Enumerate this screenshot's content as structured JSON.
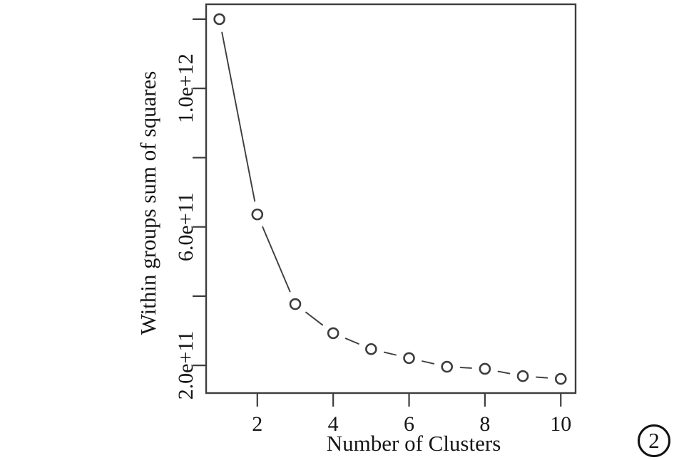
{
  "figure": {
    "background": "#ffffff",
    "badge": {
      "label": "2"
    }
  },
  "chart_data": {
    "type": "line",
    "title": "",
    "xlabel": "Number of Clusters",
    "ylabel": "Within groups sum of squares",
    "x": [
      1,
      2,
      3,
      4,
      5,
      6,
      7,
      8,
      9,
      10
    ],
    "y": [
      1200000000000.0,
      636000000000.0,
      377000000000.0,
      293000000000.0,
      247000000000.0,
      221000000000.0,
      196000000000.0,
      190000000000.0,
      169000000000.0,
      161000000000.0
    ],
    "series_name": "within-groups-sum-of-squares",
    "marker": "open-circle",
    "line_style": "segments-between-points",
    "xlim": [
      0.65,
      10.39
    ],
    "ylim": [
      120000000000.0,
      1243000000000.0
    ],
    "x_ticks": [
      {
        "v": 2,
        "label": "2"
      },
      {
        "v": 4,
        "label": "4"
      },
      {
        "v": 6,
        "label": "6"
      },
      {
        "v": 8,
        "label": "8"
      },
      {
        "v": 10,
        "label": "10"
      }
    ],
    "y_ticks": [
      {
        "v": 200000000000.0,
        "label": "2.0e+11"
      },
      {
        "v": 400000000000.0,
        "label": ""
      },
      {
        "v": 600000000000.0,
        "label": "6.0e+11"
      },
      {
        "v": 800000000000.0,
        "label": ""
      },
      {
        "v": 1000000000000.0,
        "label": "1.0e+12"
      },
      {
        "v": 1200000000000.0,
        "label": ""
      }
    ],
    "grid": false,
    "legend": null,
    "colors": {
      "stroke": "#3d3d3d",
      "marker_fill": "#ffffff",
      "text": "#161616",
      "box": "#3d3d3d"
    }
  }
}
